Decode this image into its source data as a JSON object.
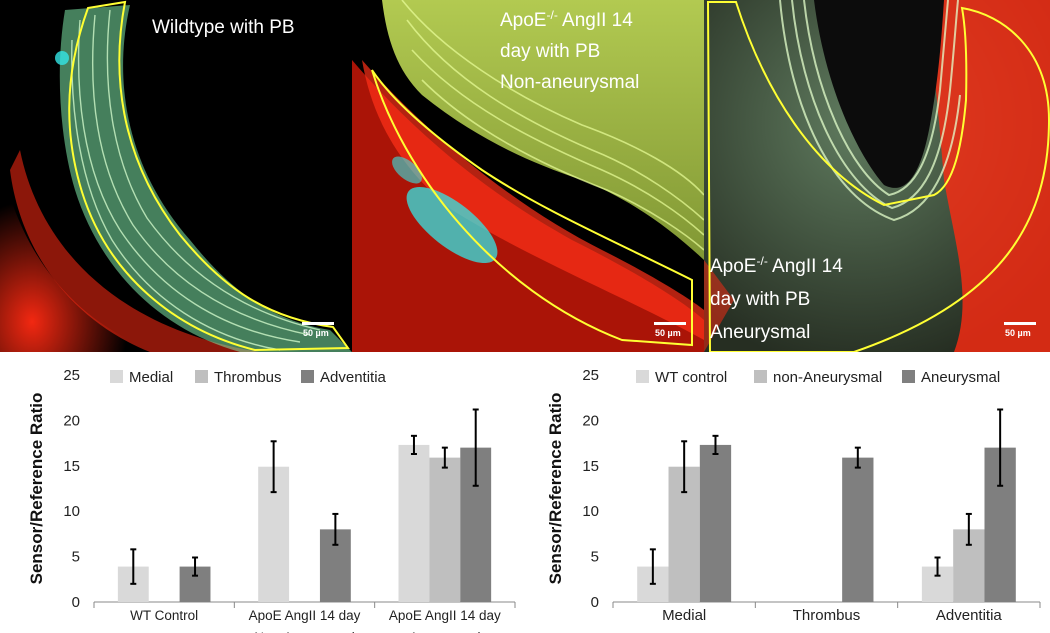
{
  "micrographs": [
    {
      "label_lines": [
        "Wildtype with PB"
      ],
      "scale_bar": "50 µm"
    },
    {
      "label_lines": [
        "ApoE-/- AngII 14",
        "day with PB",
        "Non-aneurysmal"
      ],
      "scale_bar": "50 µm"
    },
    {
      "label_lines": [
        "ApoE-/- AngII 14",
        "day with PB",
        "Aneurysmal"
      ],
      "scale_bar": "50 µm"
    }
  ],
  "colors": {
    "light": "#d9d9d9",
    "mid": "#bfbfbf",
    "dark": "#7f7f7f",
    "outline": "#ffff33",
    "elastin": "#b9ffb0",
    "adventitia": "#ff2a12",
    "probe": "#33e6e6"
  },
  "chart_data": [
    {
      "type": "bar",
      "ylabel": "Sensor/Reference Ratio",
      "ylim": [
        0,
        25
      ],
      "yticks": [
        0,
        5,
        10,
        15,
        20,
        25
      ],
      "categories": [
        [
          "WT Control"
        ],
        [
          "ApoE AngII 14 day",
          "Non-Aneurysmal"
        ],
        [
          "ApoE AngII 14 day",
          "Aneurysmal"
        ]
      ],
      "series": [
        {
          "name": "Medial",
          "color": "#d9d9d9",
          "values": [
            3.9,
            14.9,
            17.3
          ],
          "errors": [
            1.9,
            2.8,
            1.0
          ]
        },
        {
          "name": "Thrombus",
          "color": "#bfbfbf",
          "values": [
            null,
            null,
            15.9
          ],
          "errors": [
            null,
            null,
            1.1
          ]
        },
        {
          "name": "Adventitia",
          "color": "#7f7f7f",
          "values": [
            3.9,
            8.0,
            17.0
          ],
          "errors": [
            1.0,
            1.7,
            4.2
          ]
        }
      ],
      "legend": "top"
    },
    {
      "type": "bar",
      "ylabel": "Sensor/Reference Ratio",
      "ylim": [
        0,
        25
      ],
      "yticks": [
        0,
        5,
        10,
        15,
        20,
        25
      ],
      "categories": [
        [
          "Medial"
        ],
        [
          "Thrombus"
        ],
        [
          "Adventitia"
        ]
      ],
      "series": [
        {
          "name": "WT control",
          "color": "#d9d9d9",
          "values": [
            3.9,
            null,
            3.9
          ],
          "errors": [
            1.9,
            null,
            1.0
          ]
        },
        {
          "name": "non-Aneurysmal",
          "color": "#bfbfbf",
          "values": [
            14.9,
            null,
            8.0
          ],
          "errors": [
            2.8,
            null,
            1.7
          ]
        },
        {
          "name": "Aneurysmal",
          "color": "#7f7f7f",
          "values": [
            17.3,
            15.9,
            17.0
          ],
          "errors": [
            1.0,
            1.1,
            4.2
          ]
        }
      ],
      "legend": "top"
    }
  ]
}
